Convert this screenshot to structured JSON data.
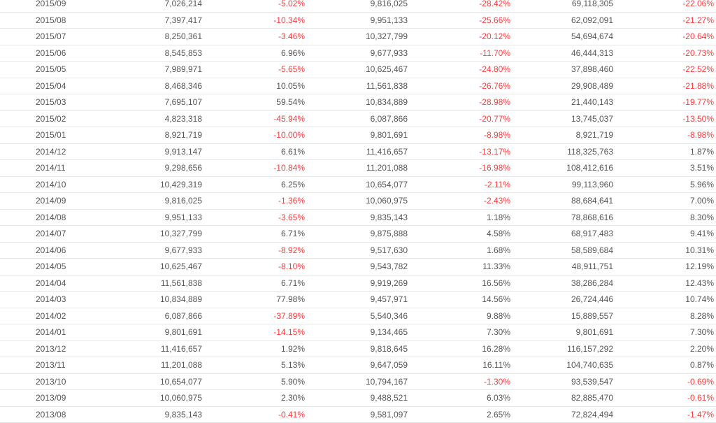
{
  "table": {
    "rows": [
      [
        "2015/09",
        "7,026,214",
        "-5.02%",
        "9,816,025",
        "-28.42%",
        "69,118,305",
        "-22.06%"
      ],
      [
        "2015/08",
        "7,397,417",
        "-10.34%",
        "9,951,133",
        "-25.66%",
        "62,092,091",
        "-21.27%"
      ],
      [
        "2015/07",
        "8,250,361",
        "-3.46%",
        "10,327,799",
        "-20.12%",
        "54,694,674",
        "-20.64%"
      ],
      [
        "2015/06",
        "8,545,853",
        "6.96%",
        "9,677,933",
        "-11.70%",
        "46,444,313",
        "-20.73%"
      ],
      [
        "2015/05",
        "7,989,971",
        "-5.65%",
        "10,625,467",
        "-24.80%",
        "37,898,460",
        "-22.52%"
      ],
      [
        "2015/04",
        "8,468,346",
        "10.05%",
        "11,561,838",
        "-26.76%",
        "29,908,489",
        "-21.88%"
      ],
      [
        "2015/03",
        "7,695,107",
        "59.54%",
        "10,834,889",
        "-28.98%",
        "21,440,143",
        "-19.77%"
      ],
      [
        "2015/02",
        "4,823,318",
        "-45.94%",
        "6,087,866",
        "-20.77%",
        "13,745,037",
        "-13.50%"
      ],
      [
        "2015/01",
        "8,921,719",
        "-10.00%",
        "9,801,691",
        "-8.98%",
        "8,921,719",
        "-8.98%"
      ],
      [
        "2014/12",
        "9,913,147",
        "6.61%",
        "11,416,657",
        "-13.17%",
        "118,325,763",
        "1.87%"
      ],
      [
        "2014/11",
        "9,298,656",
        "-10.84%",
        "11,201,088",
        "-16.98%",
        "108,412,616",
        "3.51%"
      ],
      [
        "2014/10",
        "10,429,319",
        "6.25%",
        "10,654,077",
        "-2.11%",
        "99,113,960",
        "5.96%"
      ],
      [
        "2014/09",
        "9,816,025",
        "-1.36%",
        "10,060,975",
        "-2.43%",
        "88,684,641",
        "7.00%"
      ],
      [
        "2014/08",
        "9,951,133",
        "-3.65%",
        "9,835,143",
        "1.18%",
        "78,868,616",
        "8.30%"
      ],
      [
        "2014/07",
        "10,327,799",
        "6.71%",
        "9,875,888",
        "4.58%",
        "68,917,483",
        "9.41%"
      ],
      [
        "2014/06",
        "9,677,933",
        "-8.92%",
        "9,517,630",
        "1.68%",
        "58,589,684",
        "10.31%"
      ],
      [
        "2014/05",
        "10,625,467",
        "-8.10%",
        "9,543,782",
        "11.33%",
        "48,911,751",
        "12.19%"
      ],
      [
        "2014/04",
        "11,561,838",
        "6.71%",
        "9,919,269",
        "16.56%",
        "38,286,284",
        "12.43%"
      ],
      [
        "2014/03",
        "10,834,889",
        "77.98%",
        "9,457,971",
        "14.56%",
        "26,724,446",
        "10.74%"
      ],
      [
        "2014/02",
        "6,087,866",
        "-37.89%",
        "5,540,346",
        "9.88%",
        "15,889,557",
        "8.28%"
      ],
      [
        "2014/01",
        "9,801,691",
        "-14.15%",
        "9,134,465",
        "7.30%",
        "9,801,691",
        "7.30%"
      ],
      [
        "2013/12",
        "11,416,657",
        "1.92%",
        "9,818,645",
        "16.28%",
        "116,157,292",
        "2.20%"
      ],
      [
        "2013/11",
        "11,201,088",
        "5.13%",
        "9,647,059",
        "16.11%",
        "104,740,635",
        "0.87%"
      ],
      [
        "2013/10",
        "10,654,077",
        "5.90%",
        "10,794,167",
        "-1.30%",
        "93,539,547",
        "-0.69%"
      ],
      [
        "2013/09",
        "10,060,975",
        "2.30%",
        "9,488,521",
        "6.03%",
        "82,885,470",
        "-0.61%"
      ],
      [
        "2013/08",
        "9,835,143",
        "-0.41%",
        "9,581,097",
        "2.65%",
        "72,824,494",
        "-1.47%"
      ]
    ]
  }
}
